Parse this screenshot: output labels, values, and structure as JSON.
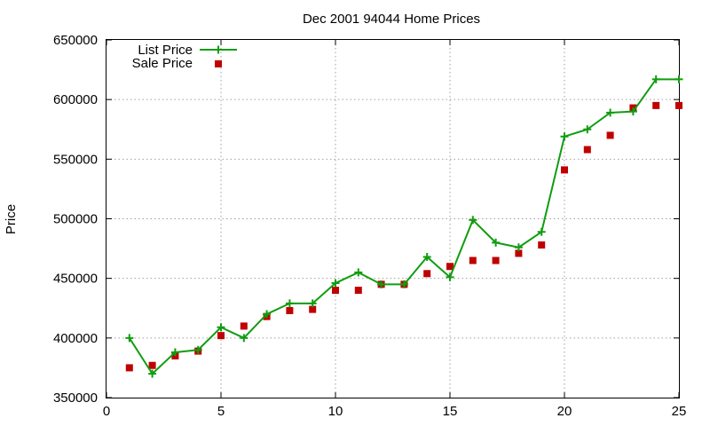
{
  "chart_data": {
    "type": "line",
    "title": "Dec 2001 94044 Home Prices",
    "xlabel": "",
    "ylabel": "Price",
    "xlim": [
      0,
      25
    ],
    "ylim": [
      350000,
      650000
    ],
    "xticks": [
      "0",
      "5",
      "10",
      "15",
      "20",
      "25"
    ],
    "yticks": [
      "350000",
      "400000",
      "450000",
      "500000",
      "550000",
      "600000",
      "650000"
    ],
    "grid": true,
    "legend_position": "top-left",
    "series": [
      {
        "name": "List Price",
        "style": "line-with-plus-markers",
        "color": "#109d10",
        "x": [
          1,
          2,
          3,
          4,
          5,
          6,
          7,
          8,
          9,
          10,
          11,
          12,
          13,
          14,
          15,
          16,
          17,
          18,
          19,
          20,
          21,
          22,
          23,
          24,
          25
        ],
        "y": [
          400000,
          370000,
          388000,
          390000,
          409000,
          400000,
          420000,
          429000,
          429000,
          446000,
          455000,
          445000,
          445000,
          468000,
          451000,
          499000,
          480000,
          476000,
          489000,
          569000,
          575000,
          589000,
          590000,
          617000,
          617000
        ]
      },
      {
        "name": "Sale Price",
        "style": "square-markers",
        "color": "#c00000",
        "x": [
          1,
          2,
          3,
          4,
          5,
          6,
          7,
          8,
          9,
          10,
          11,
          12,
          13,
          14,
          15,
          16,
          17,
          18,
          19,
          20,
          21,
          22,
          23,
          24,
          25
        ],
        "y": [
          375000,
          377000,
          385000,
          389000,
          402000,
          410000,
          418000,
          423000,
          424000,
          440000,
          440000,
          445000,
          445000,
          454000,
          460000,
          465000,
          465000,
          471000,
          478000,
          541000,
          558000,
          570000,
          593000,
          595000,
          595000
        ]
      }
    ]
  }
}
